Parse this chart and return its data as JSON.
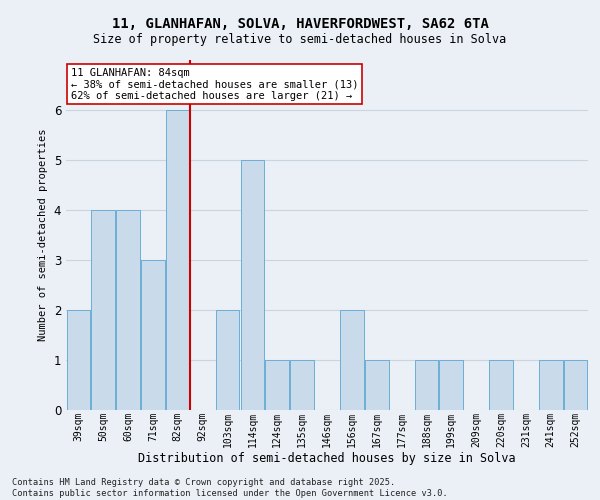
{
  "title1": "11, GLANHAFAN, SOLVA, HAVERFORDWEST, SA62 6TA",
  "title2": "Size of property relative to semi-detached houses in Solva",
  "xlabel": "Distribution of semi-detached houses by size in Solva",
  "ylabel": "Number of semi-detached properties",
  "categories": [
    "39sqm",
    "50sqm",
    "60sqm",
    "71sqm",
    "82sqm",
    "92sqm",
    "103sqm",
    "114sqm",
    "124sqm",
    "135sqm",
    "146sqm",
    "156sqm",
    "167sqm",
    "177sqm",
    "188sqm",
    "199sqm",
    "209sqm",
    "220sqm",
    "231sqm",
    "241sqm",
    "252sqm"
  ],
  "values": [
    2,
    4,
    4,
    3,
    6,
    0,
    2,
    5,
    1,
    1,
    0,
    2,
    1,
    0,
    1,
    1,
    0,
    1,
    0,
    1,
    1
  ],
  "bar_color": "#c9daea",
  "bar_edgecolor": "#6baed6",
  "grid_color": "#c8d4e0",
  "background_color": "#eaf0f6",
  "ref_line_color": "#cc0000",
  "ref_bar_index": 4,
  "annotation_text": "11 GLANHAFAN: 84sqm\n← 38% of semi-detached houses are smaller (13)\n62% of semi-detached houses are larger (21) →",
  "annotation_box_facecolor": "#ffffff",
  "annotation_box_edgecolor": "#cc0000",
  "footer": "Contains HM Land Registry data © Crown copyright and database right 2025.\nContains public sector information licensed under the Open Government Licence v3.0.",
  "ylim": [
    0,
    7
  ],
  "yticks": [
    0,
    1,
    2,
    3,
    4,
    5,
    6
  ]
}
